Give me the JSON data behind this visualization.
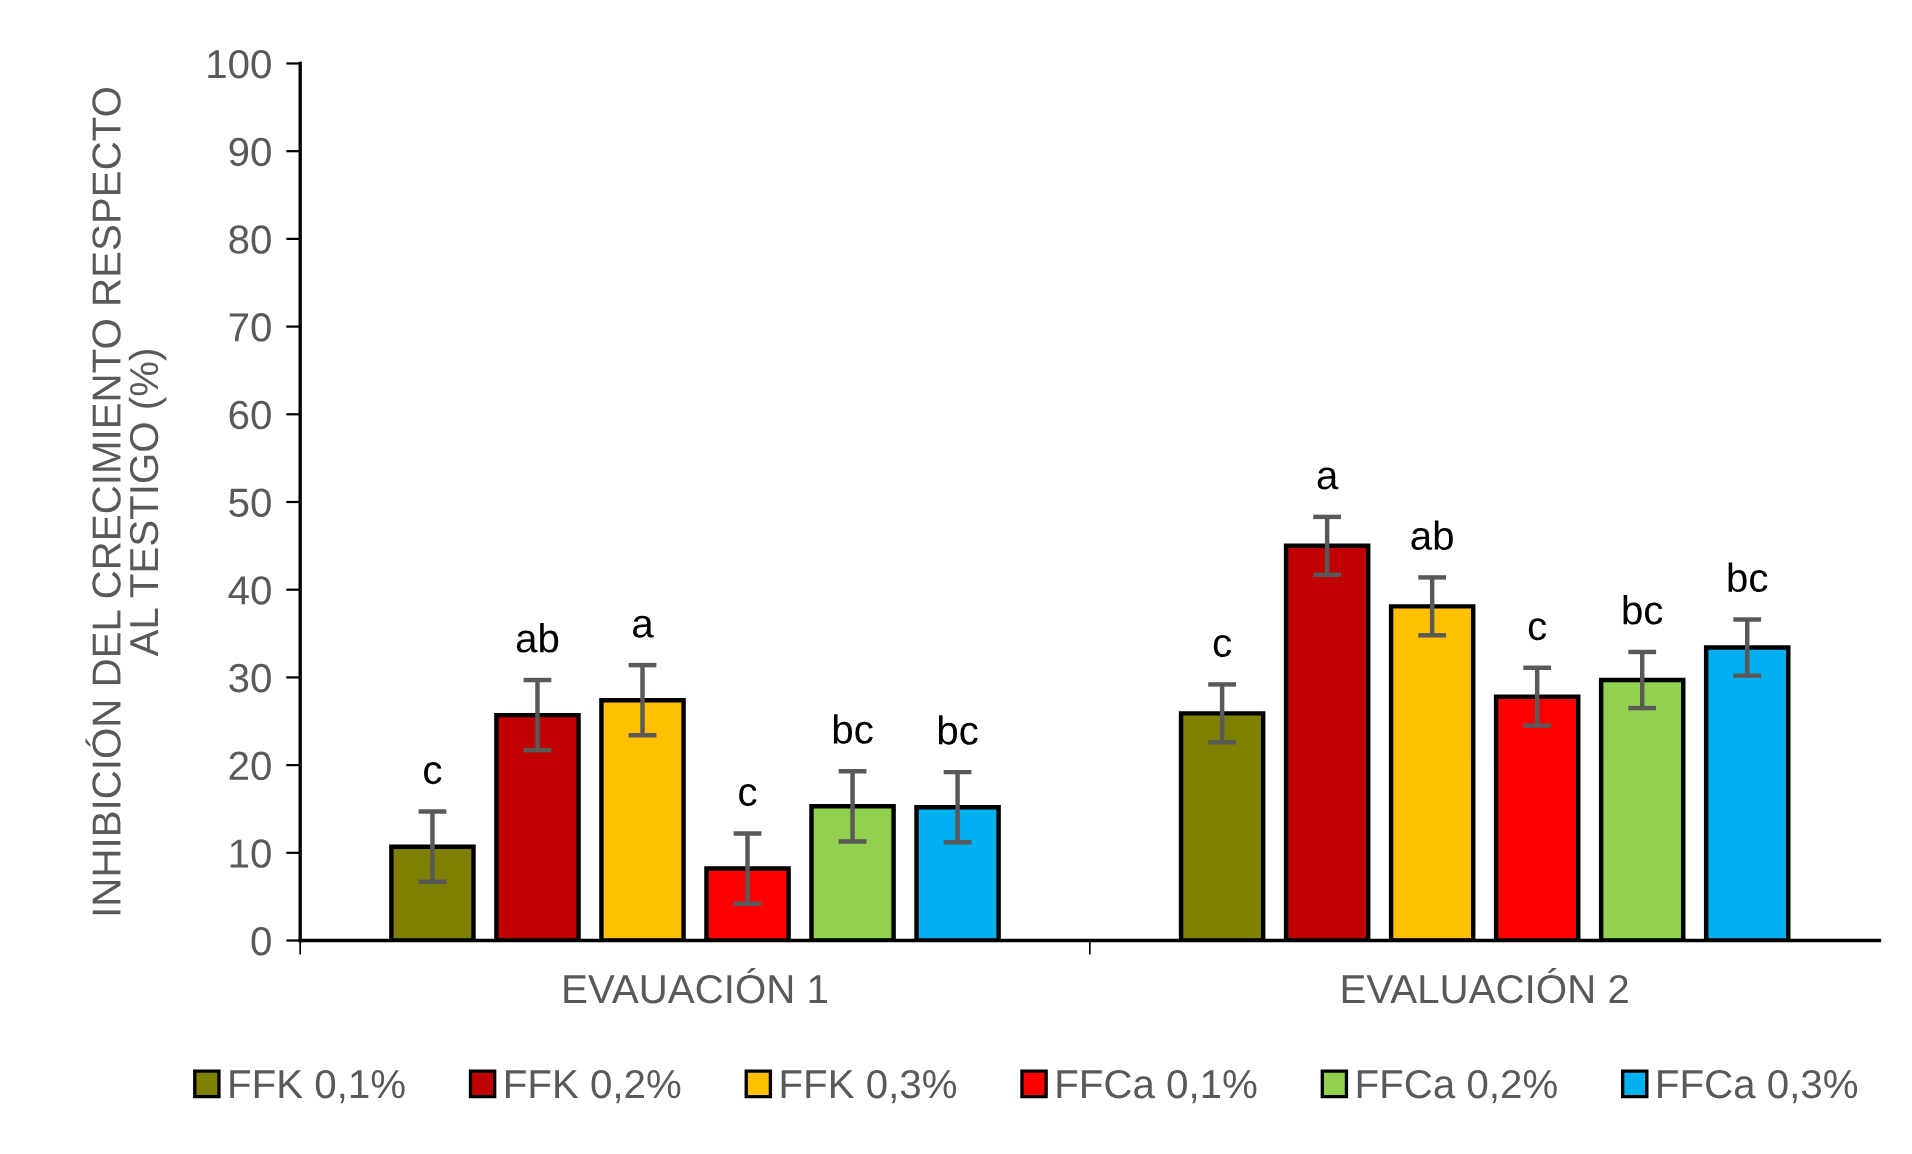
{
  "chart_data": {
    "type": "bar",
    "ylabel": "INHIBICIÓN DEL CRECIMIENTO RESPECTO\nAL TESTIGO (%)",
    "categories": [
      "EVAUACIÓN 1",
      "EVALUACIÓN 2"
    ],
    "series": [
      {
        "name": "FFK 0,1%",
        "color": "#808000",
        "values": [
          10.7,
          25.9
        ],
        "errors": [
          4.0,
          3.3
        ],
        "value_labels": [
          "c",
          "c"
        ]
      },
      {
        "name": "FFK 0,2%",
        "color": "#c00000",
        "values": [
          25.7,
          45.0
        ],
        "errors": [
          4.0,
          3.3
        ],
        "value_labels": [
          "ab",
          "a"
        ]
      },
      {
        "name": "FFK 0,3%",
        "color": "#ffc000",
        "values": [
          27.4,
          38.1
        ],
        "errors": [
          4.0,
          3.3
        ],
        "value_labels": [
          "a",
          "ab"
        ]
      },
      {
        "name": "FFCa 0,1%",
        "color": "#ff0000",
        "values": [
          8.2,
          27.8
        ],
        "errors": [
          4.0,
          3.3
        ],
        "value_labels": [
          "c",
          "c"
        ]
      },
      {
        "name": "FFCa 0,2%",
        "color": "#92d050",
        "values": [
          15.3,
          29.7
        ],
        "errors": [
          4.0,
          3.2
        ],
        "value_labels": [
          "bc",
          "bc"
        ]
      },
      {
        "name": "FFCa 0,3%",
        "color": "#00b0f0",
        "values": [
          15.2,
          33.4
        ],
        "errors": [
          4.0,
          3.2
        ],
        "value_labels": [
          "bc",
          "bc"
        ]
      }
    ],
    "ylim": [
      0,
      100
    ],
    "yticks": [
      0,
      10,
      20,
      30,
      40,
      50,
      60,
      70,
      80,
      90,
      100
    ],
    "grid": false,
    "legend": "bottom"
  }
}
